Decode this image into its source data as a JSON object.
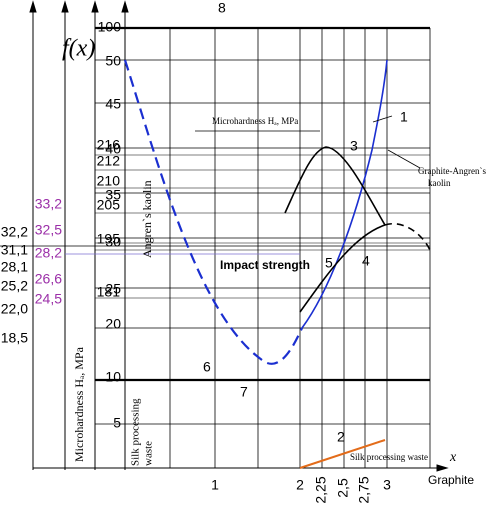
{
  "title": "f(x)",
  "top_label": "8",
  "scales": {
    "main": [
      "100",
      "50",
      "45",
      "40",
      "35",
      "30",
      "25",
      "20",
      "10",
      "5"
    ],
    "microhardness": [
      "216",
      "212",
      "210",
      "205",
      "195",
      "181"
    ],
    "third": [
      "33,2",
      "32,5",
      "28,2",
      "26,6",
      "24,5"
    ],
    "left": [
      "32,2",
      "31,1",
      "28,1",
      "25,2",
      "22,0",
      "18,5"
    ]
  },
  "axis_titles": {
    "microhardness": "Microhardness Hₐ, MPa",
    "kaolin": "Angren`s kaolin",
    "silk": [
      "Silk processing",
      "waste"
    ]
  },
  "x_axis": {
    "labels": [
      "1",
      "2",
      "2,25",
      "2,5",
      "2,75",
      "3"
    ],
    "symbol": "x",
    "title": "Graphite"
  },
  "curve_labels": [
    "1",
    "2",
    "3",
    "4",
    "5",
    "6",
    "7"
  ],
  "annotations": {
    "microhardness": "Microhardness Hₐ, MPa",
    "graphite_kaolin": [
      "Graphite-Angren`s",
      "kaolin"
    ],
    "impact": "Impact strength",
    "silk": "Silk processing waste"
  }
}
